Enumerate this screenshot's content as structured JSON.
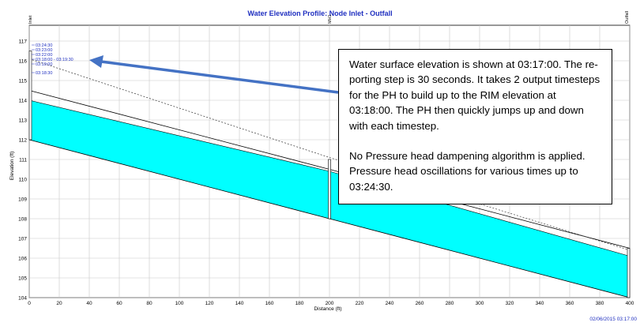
{
  "chart_data": {
    "type": "area",
    "title": "Water Elevation Profile:  Node Inlet - Outfall",
    "xlabel": "Distance (ft)",
    "ylabel": "Elevation (ft)",
    "xlim": [
      0,
      400
    ],
    "ylim": [
      104,
      117.8
    ],
    "xticks": [
      0,
      20,
      40,
      60,
      80,
      100,
      120,
      140,
      160,
      180,
      200,
      220,
      240,
      260,
      280,
      300,
      320,
      340,
      360,
      380,
      400
    ],
    "yticks": [
      104,
      105,
      106,
      107,
      108,
      109,
      110,
      111,
      112,
      113,
      114,
      115,
      116,
      117
    ],
    "grid": true,
    "nodes": [
      {
        "name": "Inlet",
        "x": 0,
        "invert": 112.0,
        "rim": 116.5
      },
      {
        "name": "MH1",
        "x": 200,
        "invert": 108.0,
        "rim": 111.0
      },
      {
        "name": "Outfall",
        "x": 400,
        "invert": 104.0,
        "rim": 106.5
      }
    ],
    "pipe": {
      "invert": {
        "x": [
          0,
          200,
          400
        ],
        "y": [
          112.0,
          108.0,
          104.0
        ]
      },
      "crown": {
        "x": [
          0,
          200,
          400
        ],
        "y": [
          114.5,
          110.5,
          106.5
        ]
      }
    },
    "water_surface": {
      "x": [
        0,
        200,
        400
      ],
      "y": [
        114.0,
        110.4,
        106.1
      ]
    },
    "pressure_head": {
      "x": [
        0,
        200,
        400
      ],
      "y": [
        116.1,
        111.1,
        106.4
      ]
    },
    "time_labels": [
      "03:24:30",
      "03:23:00",
      "03:22:00",
      "03:18:00 - 03:19:30",
      "03:19:00",
      "03:18:30"
    ],
    "timestamp": "02/06/2015 03:17:00",
    "colors": {
      "water": "#00ffff",
      "labels": "#2030c0",
      "arrow": "#4472c4",
      "grid": "#c8c8c8"
    }
  },
  "callout": {
    "paragraph1": "Water surface elevation is shown at 03:17:00. The re-porting step is 30 seconds.  It takes 2 output timesteps for the PH to build up to the RIM elevation at 03:18:00. The PH then quickly jumps up and down with each timestep.",
    "paragraph2": "No Pressure head dampening algorithm is applied. Pressure head oscillations for various times up to 03:24:30."
  }
}
